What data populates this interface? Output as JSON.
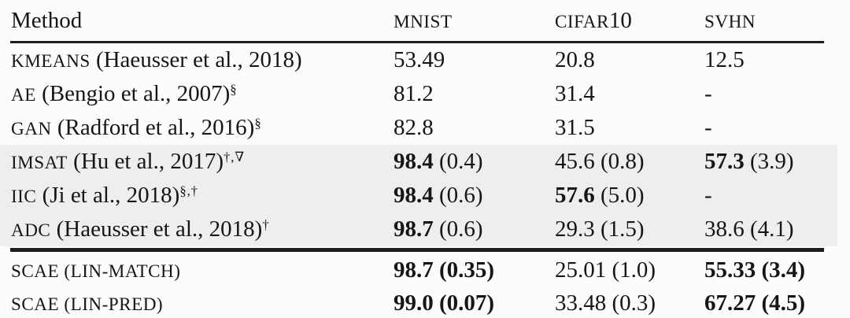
{
  "page": {
    "background_color": "#fcfcfc",
    "text_color": "#161616",
    "shade_color": "#eeeeee",
    "rule_color": "#1e1e1e"
  },
  "header": {
    "method_label": "Method",
    "datasets": [
      {
        "sc": "MNIST",
        "suffix": ""
      },
      {
        "sc": "CIFAR",
        "suffix": "10"
      },
      {
        "sc": "SVHN",
        "suffix": ""
      }
    ]
  },
  "rows": [
    {
      "section": "top",
      "method": {
        "sc": "KMEANS",
        "rest": " (Haeusser et al., 2018)",
        "sup": ""
      },
      "cells": [
        {
          "main": "53.49",
          "paren": "",
          "bold": "none"
        },
        {
          "main": "20.8",
          "paren": "",
          "bold": "none"
        },
        {
          "main": "12.5",
          "paren": "",
          "bold": "none"
        }
      ]
    },
    {
      "section": "top",
      "method": {
        "sc": "AE",
        "rest": " (Bengio et al., 2007)",
        "sup": "§"
      },
      "cells": [
        {
          "main": "81.2",
          "paren": "",
          "bold": "none"
        },
        {
          "main": "31.4",
          "paren": "",
          "bold": "none"
        },
        {
          "main": "-",
          "paren": "",
          "bold": "none"
        }
      ]
    },
    {
      "section": "top",
      "method": {
        "sc": "GAN",
        "rest": " (Radford et al., 2016)",
        "sup": "§"
      },
      "cells": [
        {
          "main": "82.8",
          "paren": "",
          "bold": "none"
        },
        {
          "main": "31.5",
          "paren": "",
          "bold": "none"
        },
        {
          "main": "-",
          "paren": "",
          "bold": "none"
        }
      ]
    },
    {
      "section": "shaded",
      "method": {
        "sc": "IMSAT",
        "rest": " (Hu et al., 2017)",
        "sup": "†,∇"
      },
      "cells": [
        {
          "main": "98.4",
          "paren": "(0.4)",
          "bold": "main"
        },
        {
          "main": "45.6",
          "paren": "(0.8)",
          "bold": "none"
        },
        {
          "main": "57.3",
          "paren": "(3.9)",
          "bold": "main"
        }
      ]
    },
    {
      "section": "shaded",
      "method": {
        "sc": "IIC",
        "rest": " (Ji et al., 2018)",
        "sup": "§,†"
      },
      "cells": [
        {
          "main": "98.4",
          "paren": "(0.6)",
          "bold": "main"
        },
        {
          "main": "57.6",
          "paren": "(5.0)",
          "bold": "main"
        },
        {
          "main": "-",
          "paren": "",
          "bold": "none"
        }
      ]
    },
    {
      "section": "shaded",
      "method": {
        "sc": "ADC",
        "rest": " (Haeusser et al., 2018)",
        "sup": "†"
      },
      "cells": [
        {
          "main": "98.7",
          "paren": "(0.6)",
          "bold": "main"
        },
        {
          "main": "29.3",
          "paren": "(1.5)",
          "bold": "none"
        },
        {
          "main": "38.6",
          "paren": "(4.1)",
          "bold": "none"
        }
      ]
    },
    {
      "section": "bottom",
      "method": {
        "sc": "SCAE (LIN-MATCH)",
        "rest": "",
        "sup": ""
      },
      "cells": [
        {
          "main": "98.7",
          "paren": "(0.35)",
          "bold": "all"
        },
        {
          "main": "25.01",
          "paren": "(1.0)",
          "bold": "none"
        },
        {
          "main": "55.33",
          "paren": "(3.4)",
          "bold": "all"
        }
      ]
    },
    {
      "section": "bottom",
      "method": {
        "sc": "SCAE (LIN-PRED)",
        "rest": "",
        "sup": ""
      },
      "cells": [
        {
          "main": "99.0",
          "paren": "(0.07)",
          "bold": "all"
        },
        {
          "main": "33.48",
          "paren": "(0.3)",
          "bold": "none"
        },
        {
          "main": "67.27",
          "paren": "(4.5)",
          "bold": "all"
        }
      ]
    }
  ]
}
